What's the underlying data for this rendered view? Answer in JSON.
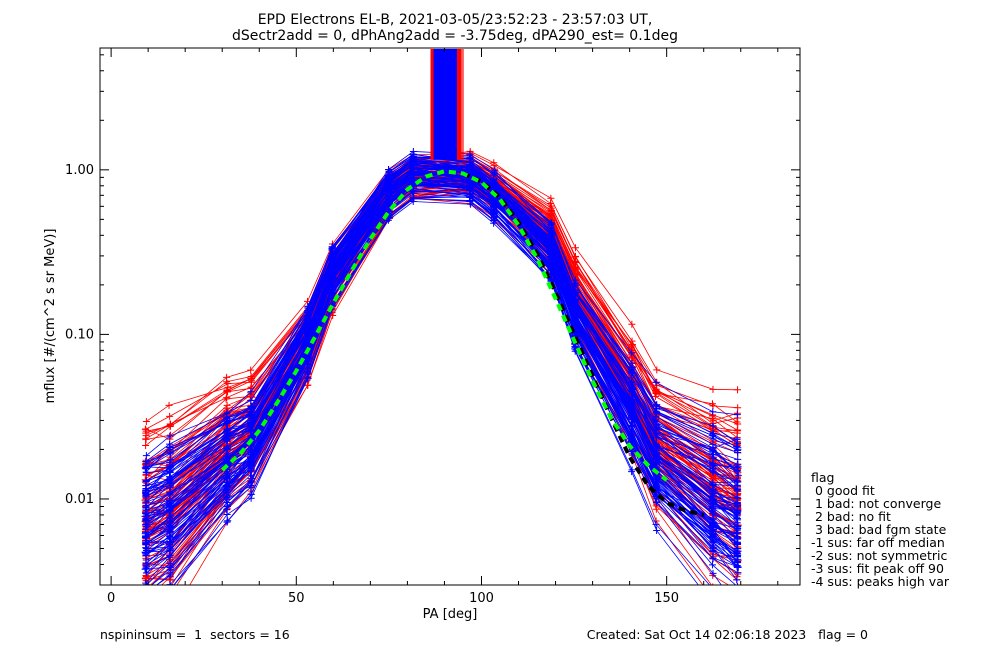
{
  "chart_data": {
    "type": "line",
    "title": "EPD Electrons EL-B, 2021-03-05/23:52:23 - 23:57:03 UT,",
    "subtitle": "dSectr2add = 0, dPhAng2add = -3.75deg, dPA290_est=   0.1deg",
    "xlabel": "PA [deg]",
    "ylabel": "mflux [#/(cm^2 s sr MeV)]",
    "xlim": [
      -3,
      186
    ],
    "ylim": [
      0.003,
      5.5
    ],
    "y_scale": "log",
    "x_ticks": [
      "0",
      "50",
      "100",
      "150"
    ],
    "x_tick_values": [
      0,
      50,
      100,
      150
    ],
    "y_ticks": [
      "0.01",
      "0.10",
      "1.00"
    ],
    "y_tick_values": [
      0.01,
      0.1,
      1.0
    ],
    "grid": false,
    "pa_bins": [
      9.4,
      15.9,
      31.3,
      37.8,
      53.1,
      59.7,
      75.0,
      81.6,
      96.9,
      103.4,
      118.8,
      125.3,
      140.6,
      147.2,
      162.5,
      169.1
    ],
    "series": [
      {
        "color": "#ff0000",
        "marker": "+",
        "median": [
          0.0072,
          0.0085,
          0.02,
          0.025,
          0.085,
          0.21,
          0.7,
          0.9,
          0.92,
          0.75,
          0.4,
          0.18,
          0.045,
          0.022,
          0.012,
          0.01
        ]
      },
      {
        "color": "#0000ff",
        "marker": "+",
        "median": [
          0.0065,
          0.008,
          0.016,
          0.021,
          0.09,
          0.23,
          0.72,
          0.93,
          0.9,
          0.7,
          0.32,
          0.13,
          0.035,
          0.018,
          0.01,
          0.008
        ]
      },
      {
        "color": "#00ff00",
        "style": "dashed",
        "note": "fit",
        "x": [
          30,
          35,
          40,
          45,
          50,
          55,
          60,
          65,
          70,
          75,
          80,
          85,
          90,
          95,
          100,
          105,
          110,
          115,
          120,
          125,
          130,
          135,
          140,
          145,
          150
        ],
        "values": [
          0.015,
          0.019,
          0.026,
          0.039,
          0.06,
          0.096,
          0.155,
          0.245,
          0.38,
          0.56,
          0.76,
          0.91,
          0.98,
          0.95,
          0.84,
          0.66,
          0.46,
          0.29,
          0.165,
          0.092,
          0.052,
          0.031,
          0.021,
          0.016,
          0.013
        ]
      },
      {
        "color": "#000000",
        "style": "dashed",
        "note": "fit",
        "x": [
          95,
          100,
          105,
          110,
          115,
          120,
          125,
          130,
          135,
          140,
          145,
          150,
          155,
          160
        ],
        "values": [
          0.95,
          0.85,
          0.68,
          0.48,
          0.31,
          0.18,
          0.1,
          0.056,
          0.031,
          0.018,
          0.012,
          0.0095,
          0.0085,
          0.008
        ]
      }
    ],
    "legend": {
      "placement": "right",
      "title": "flag",
      "entries": [
        " 0 good fit",
        " 1 bad: not converge",
        " 2 bad: no fit",
        " 3 bad: bad fgm state",
        "-1 sus: far off median",
        "-2 sus: not symmetric",
        "-3 sus: fit peak off 90",
        "-4 sus: peaks high var"
      ]
    },
    "footer": {
      "left": "nspininsum =  1  sectors = 16",
      "right": "Created: Sat Oct 14 02:06:18 2023   flag = 0"
    }
  }
}
